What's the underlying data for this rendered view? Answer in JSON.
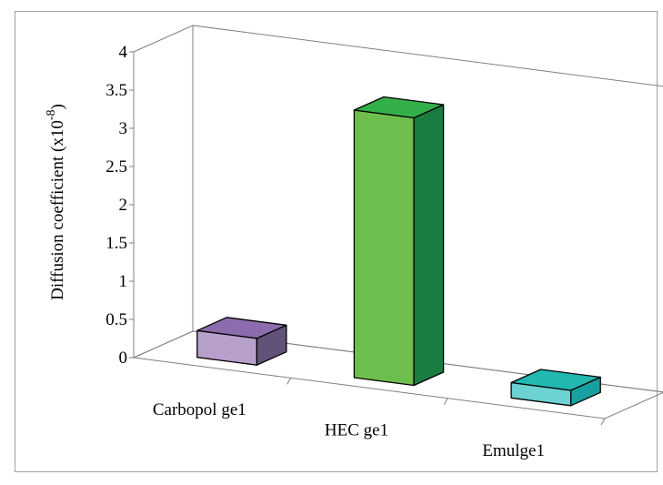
{
  "chart_data": {
    "type": "bar",
    "style": "3d-column",
    "categories": [
      "Carbopol ge1",
      "HEC ge1",
      "Emulge1"
    ],
    "values": [
      0.35,
      3.5,
      0.2
    ],
    "ylabel": "Diffusion coefficient (x10",
    "ylabel_superscript": "-8",
    "ylabel_suffix": ")",
    "ylim": [
      0,
      4
    ],
    "yticks": [
      "0",
      "0.5",
      "1",
      "1.5",
      "2",
      "2.5",
      "3",
      "3.5",
      "4"
    ],
    "grid": false,
    "legend": "none",
    "colors": [
      {
        "front": "#b8a0cc",
        "side": "#62527a",
        "top": "#8c6cac"
      },
      {
        "front": "#6ebe4e",
        "side": "#1a7c40",
        "top": "#34b04a"
      },
      {
        "front": "#6cd2d2",
        "side": "#18a0a0",
        "top": "#20b8b0"
      }
    ]
  }
}
